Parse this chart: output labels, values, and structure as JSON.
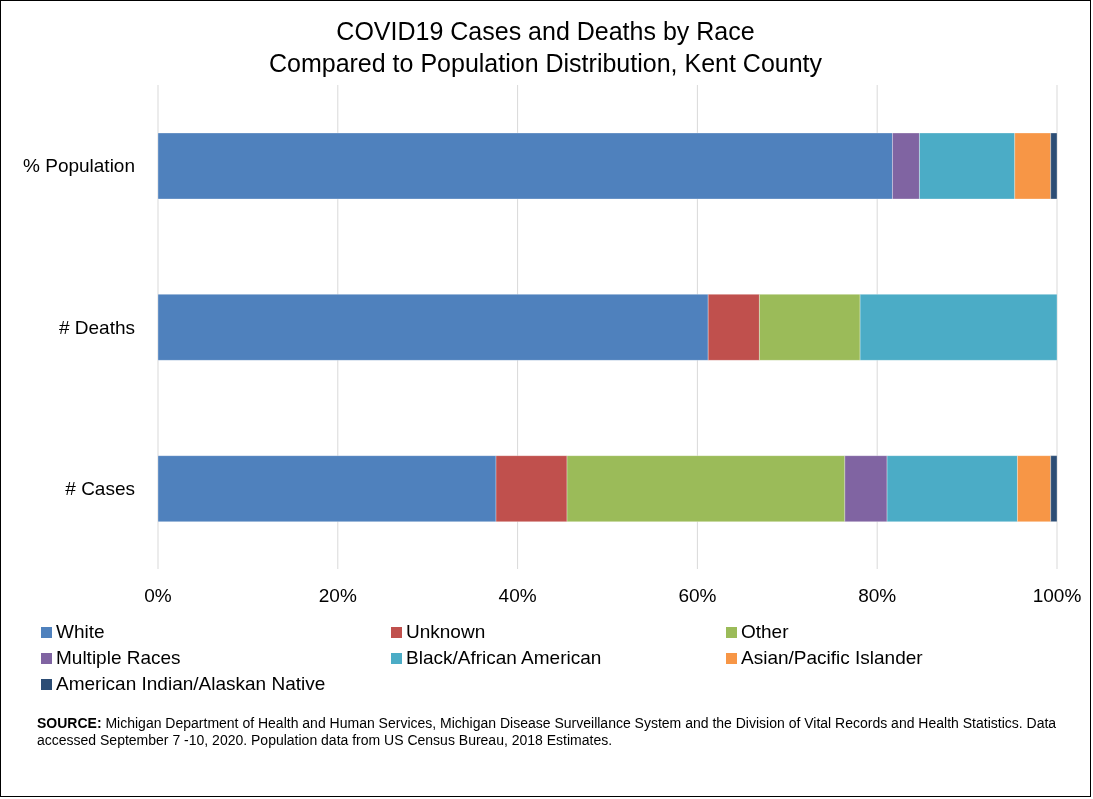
{
  "chart_data": {
    "type": "bar",
    "orientation": "horizontal",
    "stacked": true,
    "title": "COVID19 Cases and Deaths by Race\nCompared to Population Distribution, Kent County",
    "categories": [
      "% Population",
      "# Deaths",
      "# Cases"
    ],
    "series": [
      {
        "name": "White",
        "color": "#4f81bd",
        "values": [
          81.7,
          61.2,
          37.6
        ]
      },
      {
        "name": "Unknown",
        "color": "#c0504d",
        "values": [
          null,
          5.7,
          7.9
        ]
      },
      {
        "name": "Other",
        "color": "#9bbb59",
        "values": [
          null,
          11.2,
          30.9
        ]
      },
      {
        "name": "Multiple Races",
        "color": "#8064a2",
        "values": [
          3.0,
          null,
          4.7
        ]
      },
      {
        "name": "Black/African American",
        "color": "#4bacc6",
        "values": [
          10.6,
          21.9,
          14.5
        ]
      },
      {
        "name": "Asian/Pacific Islander",
        "color": "#f79646",
        "values": [
          4.0,
          null,
          3.7
        ]
      },
      {
        "name": "American Indian/Alaskan Native",
        "color": "#2c4d75",
        "values": [
          0.7,
          null,
          0.7
        ]
      }
    ],
    "xlim": [
      0,
      100
    ],
    "xticks": [
      {
        "value": 0,
        "label": "0%"
      },
      {
        "value": 20,
        "label": "20%"
      },
      {
        "value": 40,
        "label": "40%"
      },
      {
        "value": 60,
        "label": "60%"
      },
      {
        "value": 80,
        "label": "80%"
      },
      {
        "value": 100,
        "label": "100%"
      }
    ],
    "grid": "x",
    "legend": "bottom",
    "annotations": [
      "SOURCE: Michigan Department of Health and Human Services, Michigan Disease Surveillance System and the Division of Vital Records and Health Statistics.  Data accessed September 7 -10, 2020.  Population data from US Census Bureau, 2018 Estimates."
    ]
  }
}
